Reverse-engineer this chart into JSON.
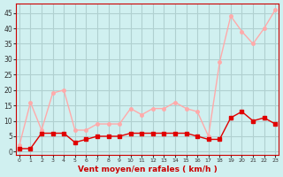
{
  "x": [
    0,
    1,
    2,
    3,
    4,
    5,
    6,
    7,
    8,
    9,
    10,
    11,
    12,
    13,
    14,
    15,
    16,
    17,
    18,
    19,
    20,
    21,
    22,
    23
  ],
  "wind_avg": [
    1,
    1,
    6,
    6,
    6,
    3,
    4,
    5,
    5,
    5,
    6,
    6,
    6,
    6,
    6,
    6,
    5,
    4,
    4,
    11,
    13,
    10,
    11,
    9
  ],
  "wind_gust": [
    2,
    16,
    7,
    19,
    20,
    7,
    7,
    9,
    9,
    9,
    14,
    12,
    14,
    14,
    16,
    14,
    13,
    5,
    29,
    44,
    39,
    35,
    40,
    46
  ],
  "avg_color": "#e00000",
  "gust_color": "#ffaaaa",
  "bg_color": "#d0f0f0",
  "grid_color": "#b0d0d0",
  "xlabel": "Vent moyen/en rafales ( km/h )",
  "xlabel_color": "#cc0000",
  "yticks": [
    0,
    5,
    10,
    15,
    20,
    25,
    30,
    35,
    40,
    45
  ],
  "ylim": [
    -1,
    48
  ],
  "xlim": [
    -0.3,
    23.3
  ]
}
